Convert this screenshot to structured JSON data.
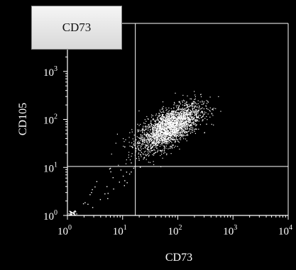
{
  "header": {
    "label": "CD73"
  },
  "chart_data": {
    "type": "scatter",
    "scale": "log",
    "xlabel": "CD73",
    "ylabel": "CD105",
    "xlim": [
      1,
      10000
    ],
    "ylim": [
      1,
      10000
    ],
    "x_ticks": [
      {
        "base": "10",
        "exp": "0"
      },
      {
        "base": "10",
        "exp": "1"
      },
      {
        "base": "10",
        "exp": "2"
      },
      {
        "base": "10",
        "exp": "3"
      },
      {
        "base": "10",
        "exp": "4"
      }
    ],
    "y_ticks": [
      {
        "base": "10",
        "exp": "0"
      },
      {
        "base": "10",
        "exp": "1"
      },
      {
        "base": "10",
        "exp": "2"
      },
      {
        "base": "10",
        "exp": "3"
      }
    ],
    "quadrant_gate": {
      "x": 17,
      "y": 10.5
    },
    "population": {
      "center_x": 70,
      "center_y": 70,
      "spread_log_x": 0.28,
      "spread_log_y": 0.24,
      "correlation": 0.65,
      "point_count": 2600
    },
    "colors": {
      "background": "#000000",
      "points": "#ffffff",
      "axes": "#ffffff"
    }
  }
}
